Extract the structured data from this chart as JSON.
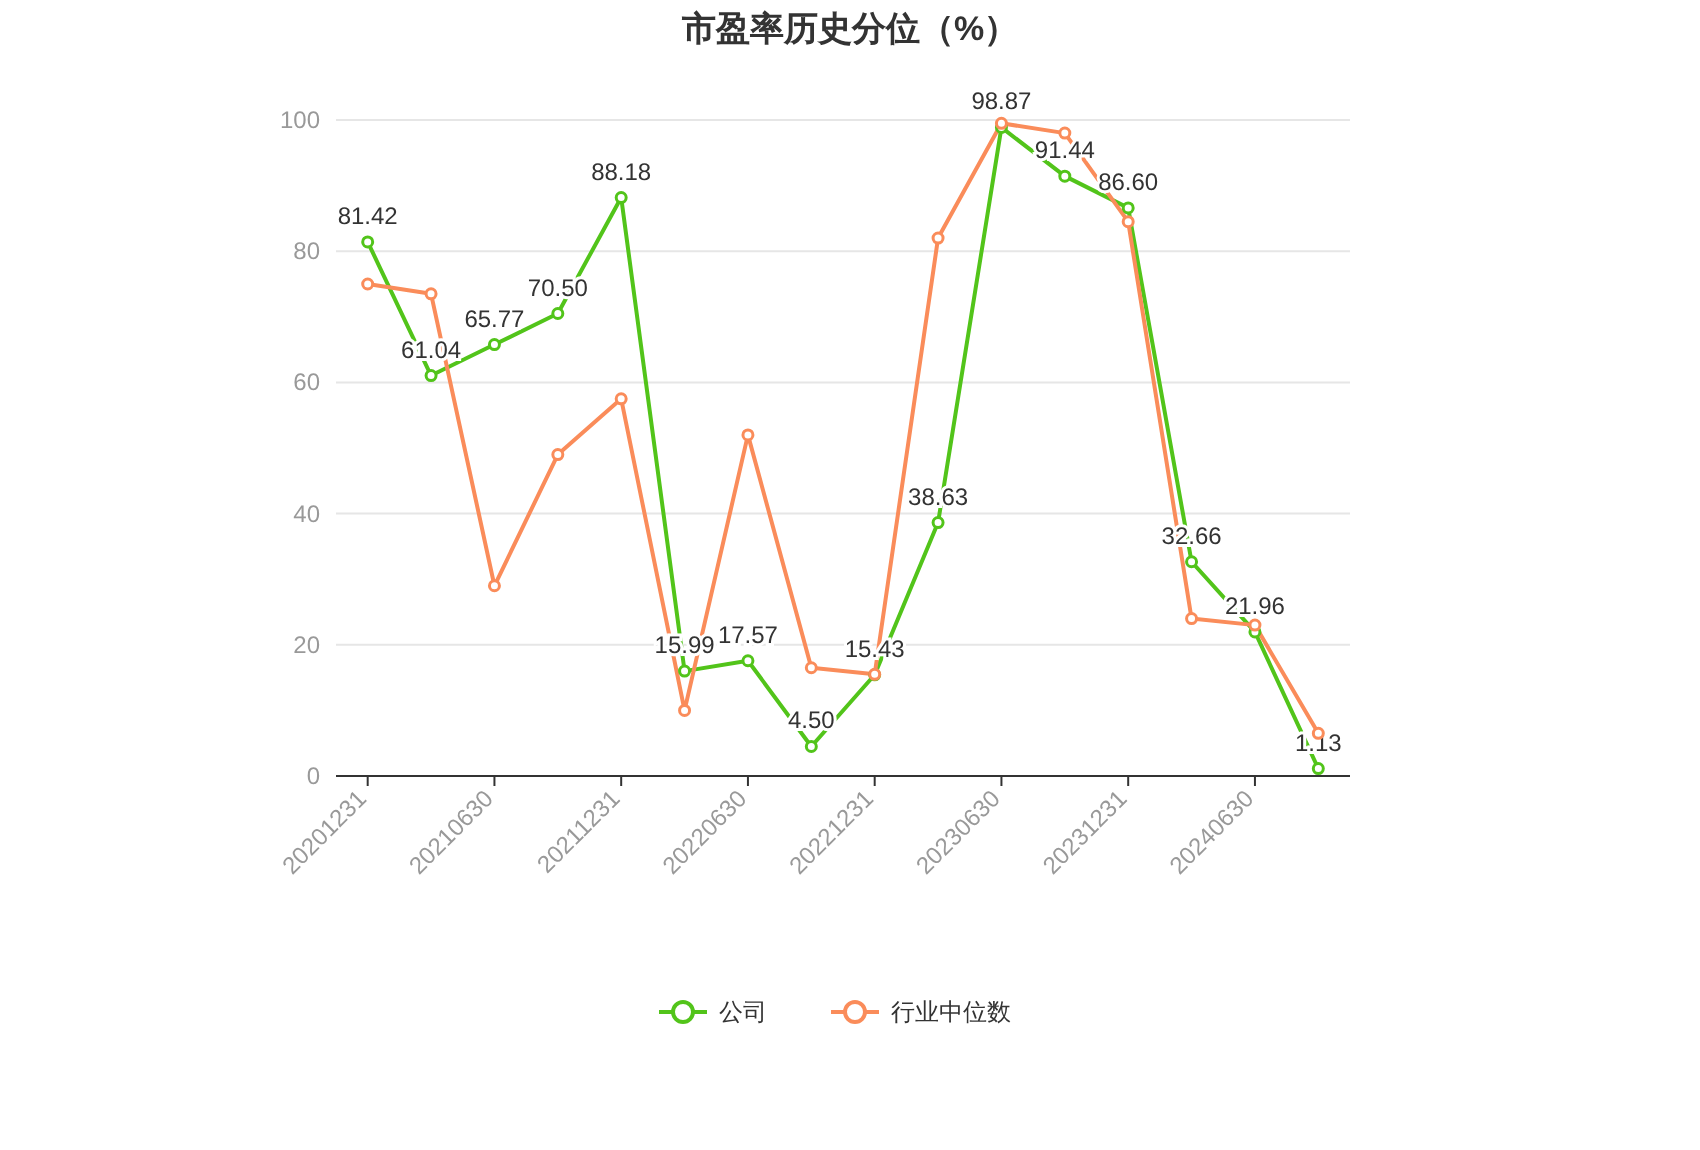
{
  "chart_data": {
    "type": "line",
    "title": "市盈率历史分位（%）",
    "categories": [
      "20201231",
      null,
      "20210630",
      null,
      "20211231",
      null,
      "20220630",
      null,
      "20221231",
      null,
      "20230630",
      null,
      "20231231",
      null,
      "20240630",
      null
    ],
    "series": [
      {
        "name": "公司",
        "color": "#52c41a",
        "values": [
          81.42,
          61.04,
          65.77,
          70.5,
          88.18,
          15.99,
          17.57,
          4.5,
          15.43,
          38.63,
          98.87,
          91.44,
          86.6,
          32.66,
          21.96,
          1.13
        ],
        "value_labels": [
          "81.42",
          "61.04",
          "65.77",
          "70.50",
          "88.18",
          "15.99",
          "17.57",
          "4.50",
          "15.43",
          "38.63",
          "98.87",
          "91.44",
          "86.60",
          "32.66",
          "21.96",
          "1.13"
        ]
      },
      {
        "name": "行业中位数",
        "color": "#fa8c5a",
        "values": [
          75,
          73.5,
          29,
          49,
          57.5,
          10,
          52,
          16.5,
          15.5,
          82,
          99.5,
          98,
          84.5,
          24,
          23,
          6.5
        ]
      }
    ],
    "ylim": [
      0,
      100
    ],
    "yticks": [
      0,
      20,
      40,
      60,
      80,
      100
    ],
    "grid": "y",
    "legend": "bottom",
    "marker": "circle",
    "line_style": "solid"
  }
}
